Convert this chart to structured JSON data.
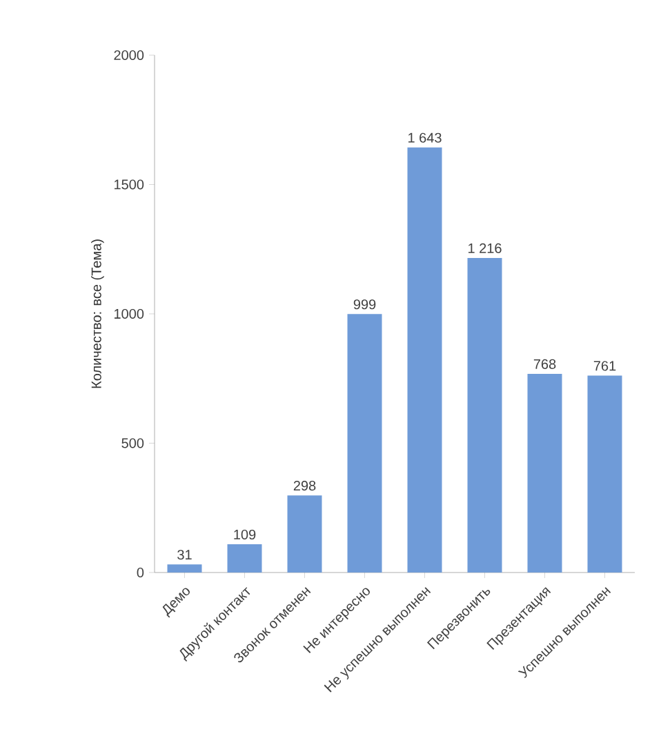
{
  "chart_data": {
    "type": "bar",
    "ylabel": "Количество: все (Тема)",
    "categories": [
      "Демо",
      "Другой контакт",
      "Звонок отменен",
      "Не интересно",
      "Не успешно выполнен",
      "Перезвонить",
      "Презентация",
      "Успешно выполнен"
    ],
    "values": [
      31,
      109,
      298,
      999,
      1643,
      1216,
      768,
      761
    ],
    "value_labels": [
      "31",
      "109",
      "298",
      "999",
      "1 643",
      "1 216",
      "768",
      "761"
    ],
    "color": "#6f9bd8",
    "ylim": [
      0,
      2000
    ],
    "yticks": [
      0,
      500,
      1000,
      1500,
      2000
    ]
  }
}
